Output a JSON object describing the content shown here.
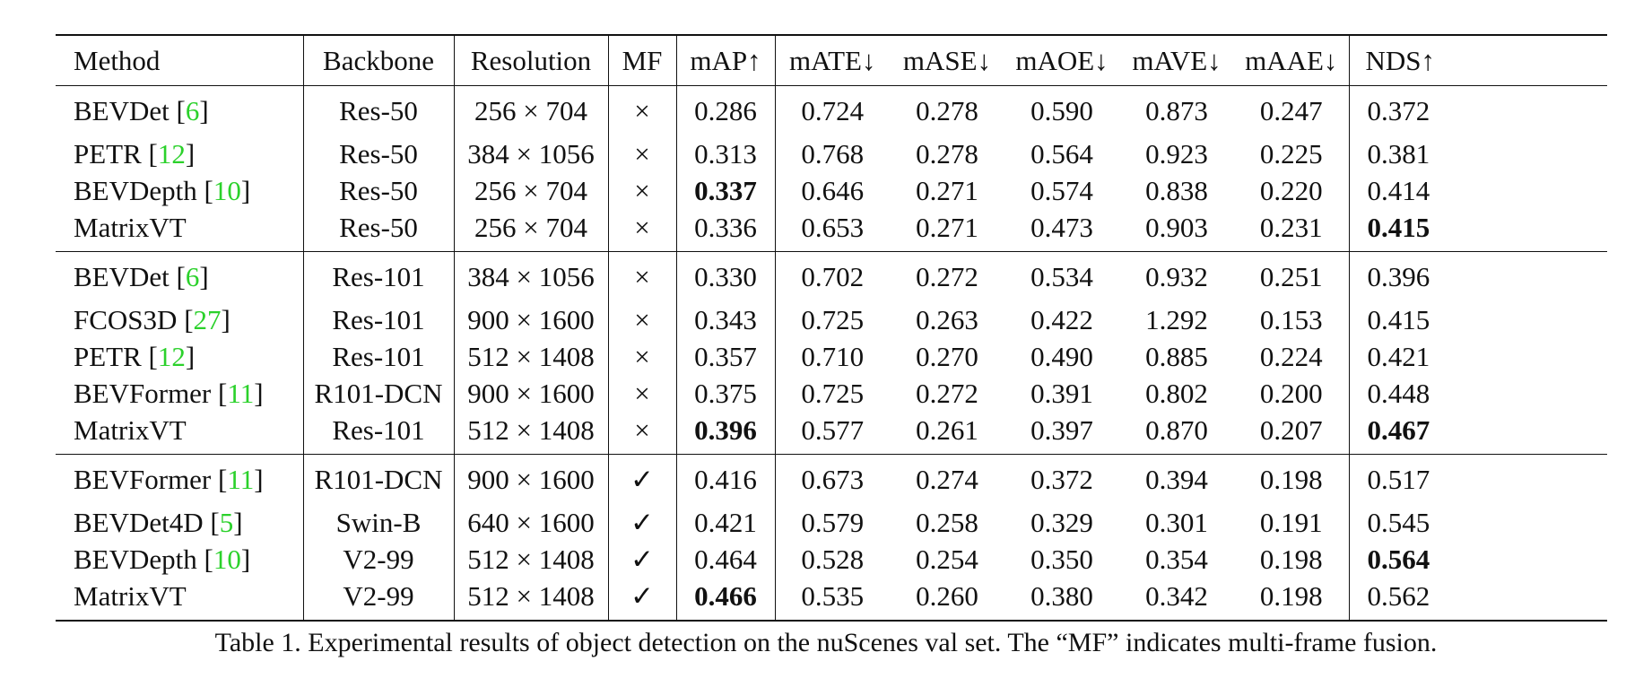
{
  "table": {
    "headers": [
      "Method",
      "Backbone",
      "Resolution",
      "MF",
      "mAP↑",
      "mATE↓",
      "mASE↓",
      "mAOE↓",
      "mAVE↓",
      "mAAE↓",
      "NDS↑"
    ],
    "groups": [
      [
        {
          "method": "BEVDet",
          "cite": "6",
          "backbone": "Res-50",
          "resolution": "256 × 704",
          "mf": "×",
          "map": "0.286",
          "mate": "0.724",
          "mase": "0.278",
          "maoe": "0.590",
          "mave": "0.873",
          "maae": "0.247",
          "nds": "0.372",
          "bold": []
        },
        {
          "method": "PETR",
          "cite": "12",
          "backbone": "Res-50",
          "resolution": "384 × 1056",
          "mf": "×",
          "map": "0.313",
          "mate": "0.768",
          "mase": "0.278",
          "maoe": "0.564",
          "mave": "0.923",
          "maae": "0.225",
          "nds": "0.381",
          "bold": []
        },
        {
          "method": "BEVDepth",
          "cite": "10",
          "backbone": "Res-50",
          "resolution": "256 × 704",
          "mf": "×",
          "map": "0.337",
          "mate": "0.646",
          "mase": "0.271",
          "maoe": "0.574",
          "mave": "0.838",
          "maae": "0.220",
          "nds": "0.414",
          "bold": [
            "map"
          ]
        },
        {
          "method": "MatrixVT",
          "cite": "",
          "backbone": "Res-50",
          "resolution": "256 × 704",
          "mf": "×",
          "map": "0.336",
          "mate": "0.653",
          "mase": "0.271",
          "maoe": "0.473",
          "mave": "0.903",
          "maae": "0.231",
          "nds": "0.415",
          "bold": [
            "nds"
          ]
        }
      ],
      [
        {
          "method": "BEVDet",
          "cite": "6",
          "backbone": "Res-101",
          "resolution": "384 × 1056",
          "mf": "×",
          "map": "0.330",
          "mate": "0.702",
          "mase": "0.272",
          "maoe": "0.534",
          "mave": "0.932",
          "maae": "0.251",
          "nds": "0.396",
          "bold": []
        },
        {
          "method": "FCOS3D",
          "cite": "27",
          "backbone": "Res-101",
          "resolution": "900 × 1600",
          "mf": "×",
          "map": "0.343",
          "mate": "0.725",
          "mase": "0.263",
          "maoe": "0.422",
          "mave": "1.292",
          "maae": "0.153",
          "nds": "0.415",
          "bold": []
        },
        {
          "method": "PETR",
          "cite": "12",
          "backbone": "Res-101",
          "resolution": "512 × 1408",
          "mf": "×",
          "map": "0.357",
          "mate": "0.710",
          "mase": "0.270",
          "maoe": "0.490",
          "mave": "0.885",
          "maae": "0.224",
          "nds": "0.421",
          "bold": []
        },
        {
          "method": "BEVFormer",
          "cite": "11",
          "backbone": "R101-DCN",
          "resolution": "900 × 1600",
          "mf": "×",
          "map": "0.375",
          "mate": "0.725",
          "mase": "0.272",
          "maoe": "0.391",
          "mave": "0.802",
          "maae": "0.200",
          "nds": "0.448",
          "bold": []
        },
        {
          "method": "MatrixVT",
          "cite": "",
          "backbone": "Res-101",
          "resolution": "512 × 1408",
          "mf": "×",
          "map": "0.396",
          "mate": "0.577",
          "mase": "0.261",
          "maoe": "0.397",
          "mave": "0.870",
          "maae": "0.207",
          "nds": "0.467",
          "bold": [
            "map",
            "nds"
          ]
        }
      ],
      [
        {
          "method": "BEVFormer",
          "cite": "11",
          "backbone": "R101-DCN",
          "resolution": "900 × 1600",
          "mf": "✓",
          "map": "0.416",
          "mate": "0.673",
          "mase": "0.274",
          "maoe": "0.372",
          "mave": "0.394",
          "maae": "0.198",
          "nds": "0.517",
          "bold": []
        },
        {
          "method": "BEVDet4D",
          "cite": "5",
          "backbone": "Swin-B",
          "resolution": "640 × 1600",
          "mf": "✓",
          "map": "0.421",
          "mate": "0.579",
          "mase": "0.258",
          "maoe": "0.329",
          "mave": "0.301",
          "maae": "0.191",
          "nds": "0.545",
          "bold": []
        },
        {
          "method": "BEVDepth",
          "cite": "10",
          "backbone": "V2-99",
          "resolution": "512 × 1408",
          "mf": "✓",
          "map": "0.464",
          "mate": "0.528",
          "mase": "0.254",
          "maoe": "0.350",
          "mave": "0.354",
          "maae": "0.198",
          "nds": "0.564",
          "bold": [
            "nds"
          ]
        },
        {
          "method": "MatrixVT",
          "cite": "",
          "backbone": "V2-99",
          "resolution": "512 × 1408",
          "mf": "✓",
          "map": "0.466",
          "mate": "0.535",
          "mase": "0.260",
          "maoe": "0.380",
          "mave": "0.342",
          "maae": "0.198",
          "nds": "0.562",
          "bold": [
            "map"
          ]
        }
      ]
    ]
  },
  "caption": "Table 1. Experimental results of object detection on the nuScenes val set. The “MF” indicates multi-frame fusion.",
  "colors": {
    "citation": "#2bd12b",
    "rule": "#111111"
  }
}
